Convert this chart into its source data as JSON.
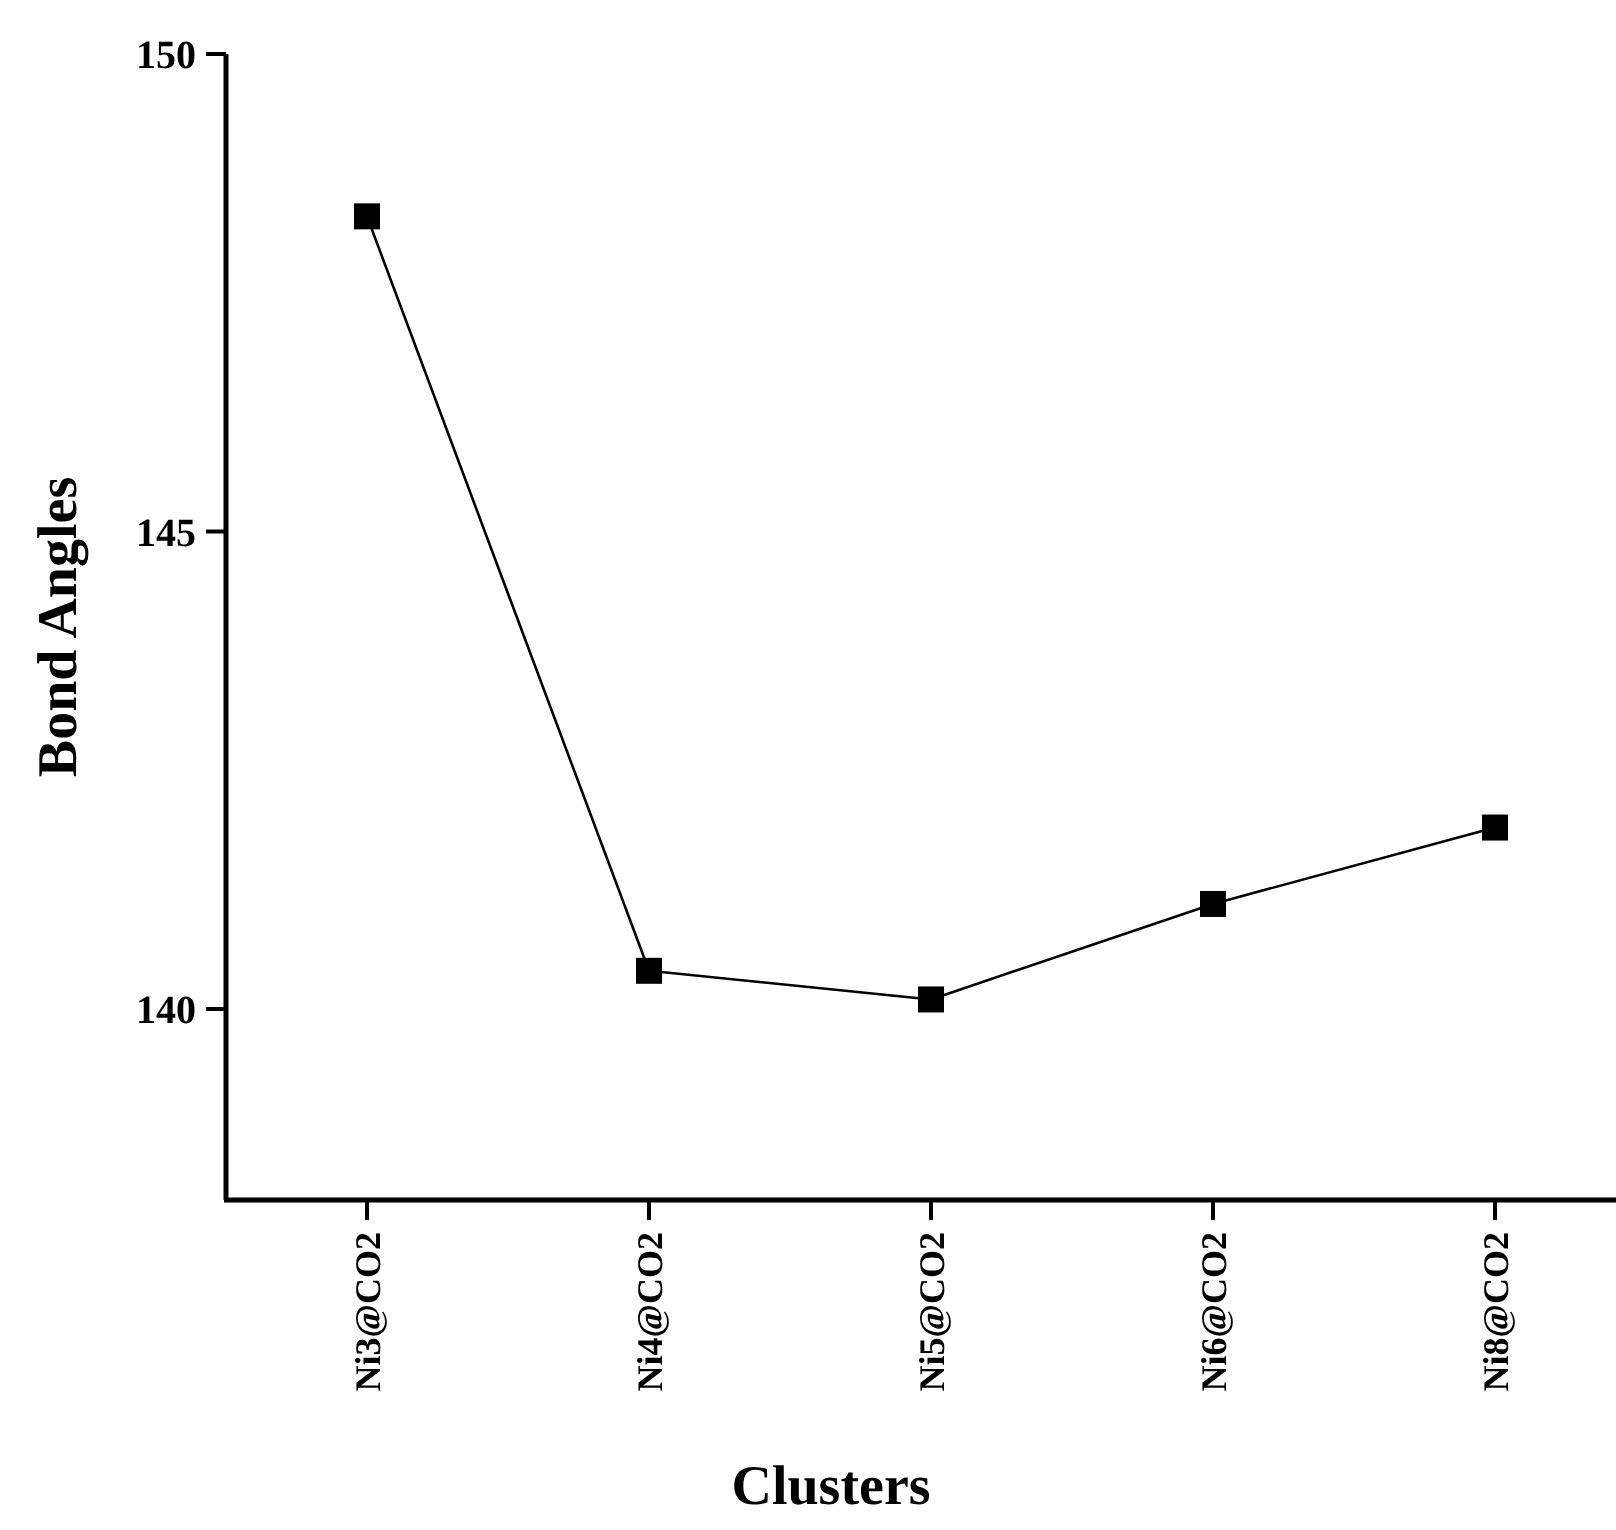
{
  "chart_data": {
    "type": "line",
    "xlabel": "Clusters",
    "ylabel": "Bond Angles",
    "categories": [
      "Ni3@CO2",
      "Ni4@CO2",
      "Ni5@CO2",
      "Ni6@CO2",
      "Ni8@CO2"
    ],
    "series": [
      {
        "color": "#000000",
        "values": [
          148.3,
          140.4,
          140.1,
          141.1,
          141.9
        ]
      }
    ],
    "ylim": [
      138,
      150
    ],
    "yticks": [
      140,
      145,
      150
    ],
    "marker": "square",
    "line_style": "solid",
    "grid": false
  }
}
